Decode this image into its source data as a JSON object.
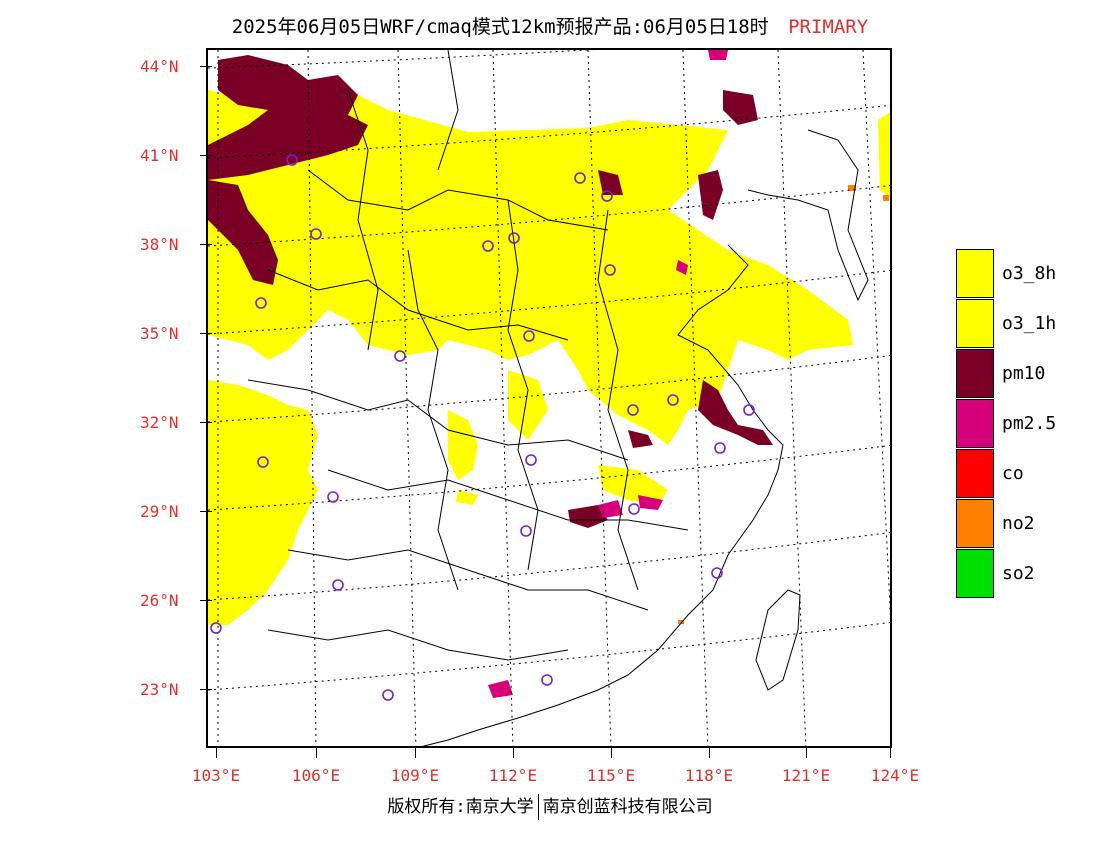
{
  "header": {
    "title": "2025年06月05日WRF/cmaq模式12km预报产品:06月05日18时",
    "tag": "PRIMARY"
  },
  "axes": {
    "lat_labels": [
      "44°N",
      "41°N",
      "38°N",
      "35°N",
      "32°N",
      "29°N",
      "26°N",
      "23°N"
    ],
    "lon_labels": [
      "103°E",
      "106°E",
      "109°E",
      "112°E",
      "115°E",
      "118°E",
      "121°E",
      "124°E"
    ]
  },
  "legend": [
    {
      "label": "o3_8h",
      "color": "#ffff00"
    },
    {
      "label": "o3_1h",
      "color": "#ffff00"
    },
    {
      "label": "pm10",
      "color": "#7a0026"
    },
    {
      "label": "pm2.5",
      "color": "#d6007a"
    },
    {
      "label": "co",
      "color": "#ff0000"
    },
    {
      "label": "no2",
      "color": "#ff8000"
    },
    {
      "label": "so2",
      "color": "#00e000"
    }
  ],
  "footer": {
    "left": "版权所有:南京大学",
    "right": "南京创蓝科技有限公司"
  },
  "colors": {
    "o3": "#ffff00",
    "pm10": "#7a0026",
    "pm25": "#d6007a",
    "no2": "#ff8000",
    "station": "#7a20c8",
    "accent": "#e0302e"
  }
}
